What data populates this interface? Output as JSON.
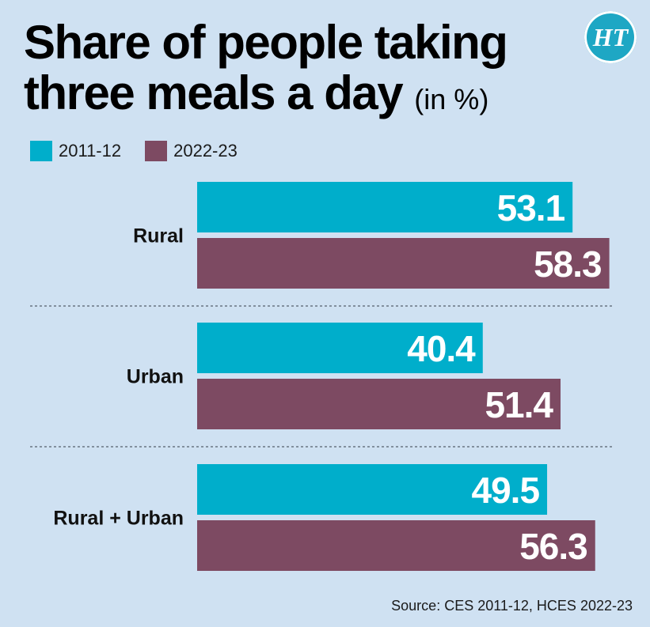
{
  "title_line1": "Share of people taking",
  "title_line2": "three meals a day",
  "title_unit": "(in %)",
  "logo_text": "HT",
  "source": "Source: CES 2011-12, HCES 2022-23",
  "colors": {
    "series1": "#00aecb",
    "series2": "#7d4a62",
    "background": "#cfe1f2"
  },
  "chart_data": {
    "type": "bar",
    "orientation": "horizontal",
    "categories": [
      "Rural",
      "Urban",
      "Rural + Urban"
    ],
    "series": [
      {
        "name": "2011-12",
        "values": [
          53.1,
          40.4,
          49.5
        ]
      },
      {
        "name": "2022-23",
        "values": [
          58.3,
          51.4,
          56.3
        ]
      }
    ],
    "legend": "top-left",
    "grid": false
  }
}
